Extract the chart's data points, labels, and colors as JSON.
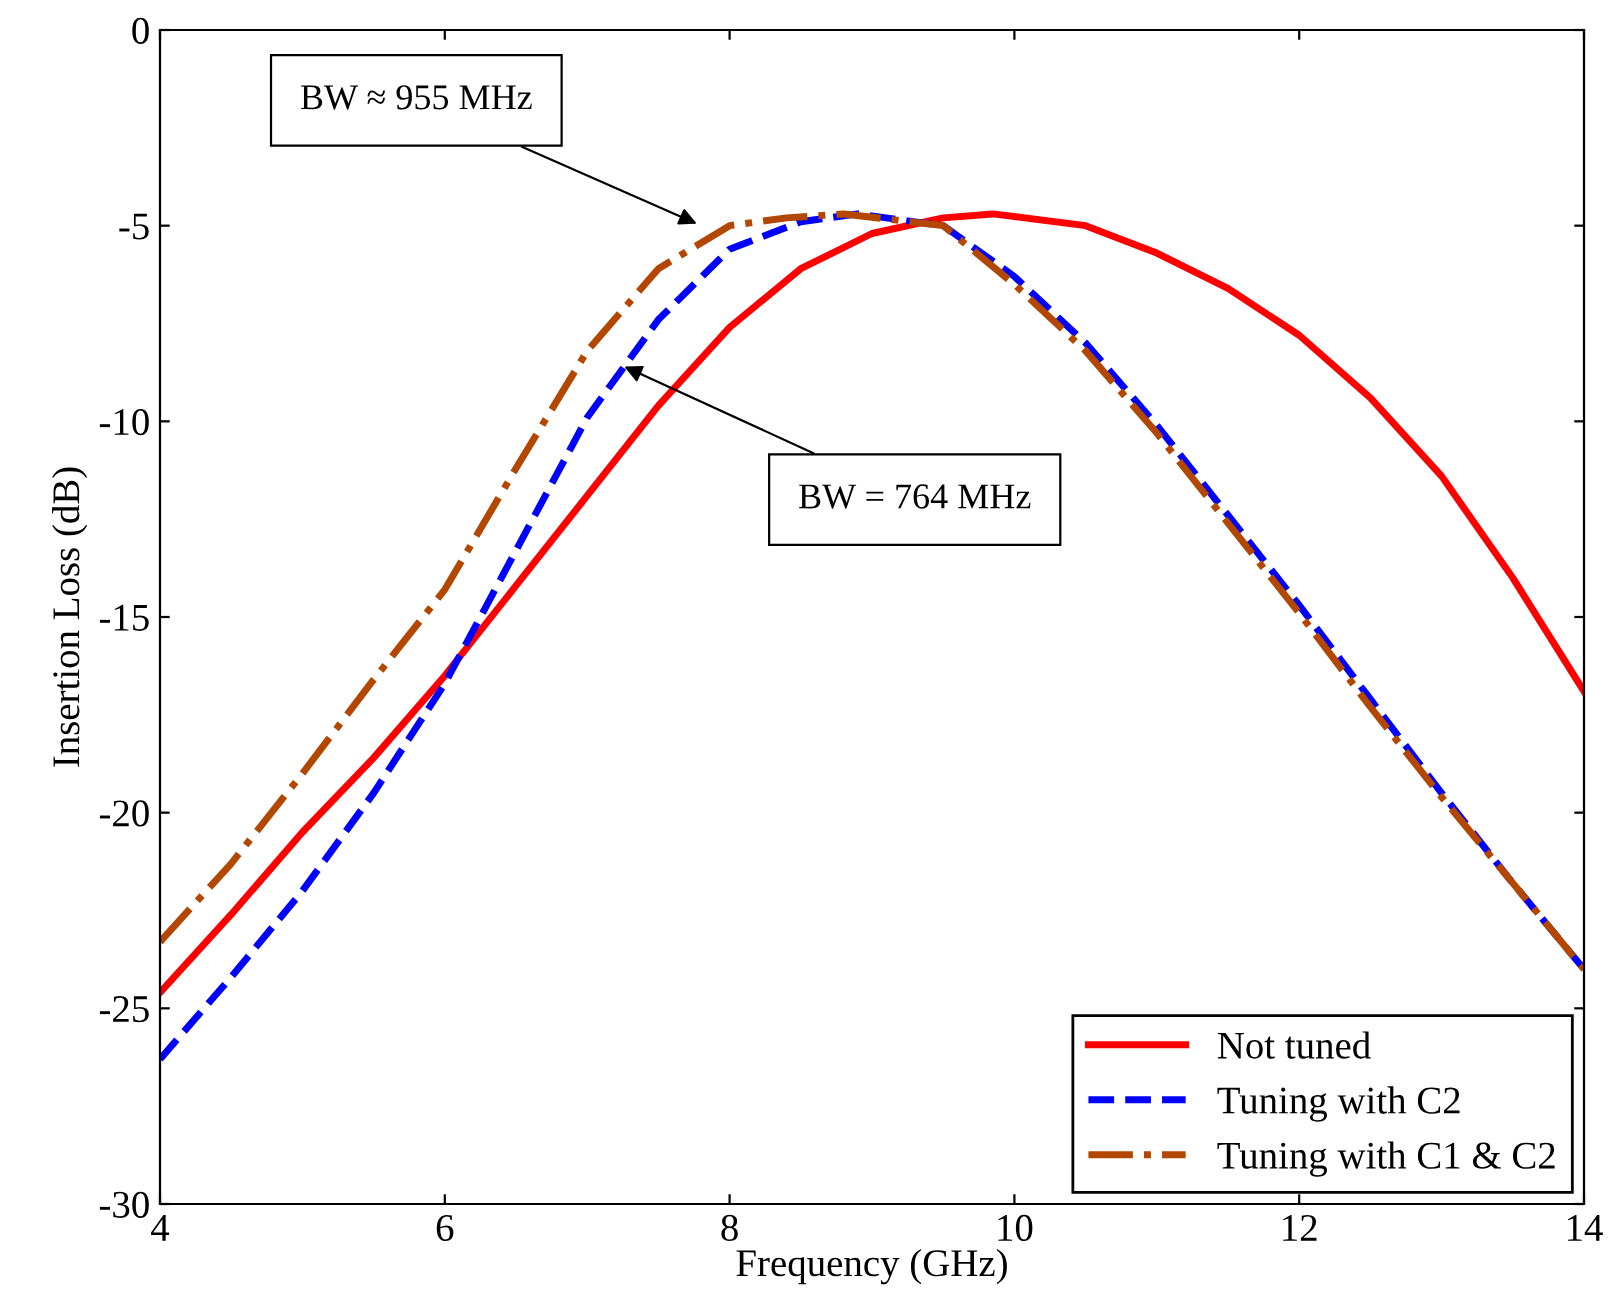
{
  "chart_data": {
    "type": "line",
    "xlabel": "Frequency (GHz)",
    "ylabel": "Insertion Loss (dB)",
    "xlim": [
      4,
      14
    ],
    "ylim": [
      -30,
      0
    ],
    "xticks": [
      4,
      6,
      8,
      10,
      12,
      14
    ],
    "yticks": [
      -30,
      -25,
      -20,
      -15,
      -10,
      -5,
      0
    ],
    "grid": false,
    "legend": "bottom right",
    "marker": "none",
    "series": [
      {
        "name": "Not tuned",
        "color": "#ff0000",
        "line_style": "solid",
        "x": [
          4,
          4.5,
          5,
          5.5,
          6,
          6.5,
          7,
          7.5,
          8,
          8.5,
          9,
          9.5,
          9.85,
          10.5,
          11,
          11.5,
          12,
          12.5,
          13,
          13.5,
          14
        ],
        "values": [
          -24.6,
          -22.6,
          -20.5,
          -18.6,
          -16.5,
          -14.2,
          -11.9,
          -9.6,
          -7.6,
          -6.1,
          -5.2,
          -4.8,
          -4.7,
          -5.0,
          -5.7,
          -6.6,
          -7.8,
          -9.4,
          -11.4,
          -14.0,
          -16.9
        ]
      },
      {
        "name": "Tuning with C2",
        "color": "#0000ff",
        "line_style": "dashed",
        "x": [
          4,
          4.5,
          5,
          5.5,
          6,
          6.5,
          7,
          7.5,
          8,
          8.5,
          8.9,
          9.5,
          10,
          10.5,
          11,
          11.5,
          12,
          12.5,
          13,
          13.5,
          14
        ],
        "values": [
          -26.3,
          -24.2,
          -22.0,
          -19.5,
          -16.7,
          -13.3,
          -9.9,
          -7.4,
          -5.6,
          -4.9,
          -4.7,
          -5.0,
          -6.3,
          -8.0,
          -10.1,
          -12.4,
          -14.7,
          -17.1,
          -19.5,
          -21.8,
          -24.0
        ]
      },
      {
        "name": "Tuning with C1 & C2",
        "color": "#b34700",
        "line_style": "dashdot",
        "x": [
          4,
          4.5,
          5,
          5.5,
          6,
          6.5,
          7,
          7.5,
          8,
          8.4,
          8.8,
          9.5,
          10,
          10.5,
          11,
          11.5,
          12,
          12.5,
          13,
          13.5,
          14
        ],
        "values": [
          -23.3,
          -21.3,
          -19.0,
          -16.6,
          -14.3,
          -11.2,
          -8.2,
          -6.1,
          -5.0,
          -4.8,
          -4.7,
          -5.0,
          -6.5,
          -8.2,
          -10.3,
          -12.6,
          -14.9,
          -17.3,
          -19.6,
          -21.8,
          -24.0
        ]
      }
    ],
    "annotations": [
      "BW ≈ 955 MHz",
      {
        "text": "BW = 764 MHz",
        "x": 7.26,
        "y": -8.6
      }
    ]
  }
}
